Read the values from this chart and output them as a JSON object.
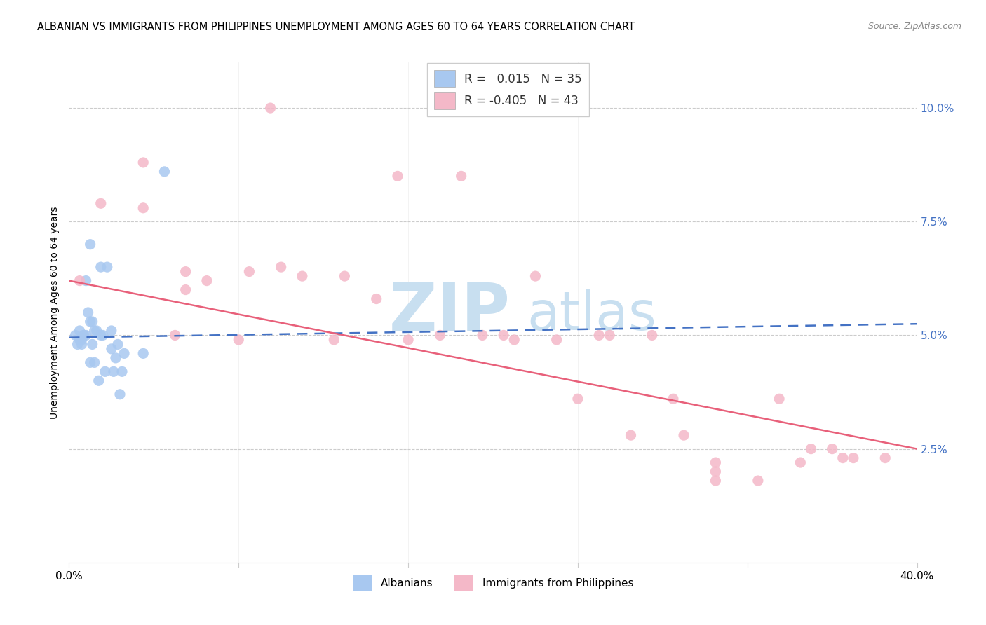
{
  "title": "ALBANIAN VS IMMIGRANTS FROM PHILIPPINES UNEMPLOYMENT AMONG AGES 60 TO 64 YEARS CORRELATION CHART",
  "source": "Source: ZipAtlas.com",
  "ylabel": "Unemployment Among Ages 60 to 64 years",
  "legend_albanian_r": "0.015",
  "legend_albanian_n": "35",
  "legend_phil_r": "-0.405",
  "legend_phil_n": "43",
  "albanian_color": "#a8c8f0",
  "phil_color": "#f4b8c8",
  "albanian_line_color": "#4472c4",
  "phil_line_color": "#e8607a",
  "watermark_zip": "ZIP",
  "watermark_atlas": "atlas",
  "watermark_color": "#c8dff0",
  "albanian_x": [
    0.3,
    0.4,
    0.5,
    0.5,
    0.6,
    0.6,
    0.7,
    0.7,
    0.8,
    0.8,
    0.9,
    1.0,
    1.0,
    1.0,
    1.1,
    1.1,
    1.2,
    1.2,
    1.3,
    1.4,
    1.5,
    1.5,
    1.6,
    1.7,
    1.8,
    2.0,
    2.0,
    2.1,
    2.2,
    2.3,
    2.4,
    2.5,
    2.6,
    3.5,
    4.5
  ],
  "albanian_y": [
    5.0,
    4.8,
    4.9,
    5.1,
    4.8,
    4.9,
    5.0,
    5.0,
    5.0,
    6.2,
    5.5,
    5.3,
    7.0,
    4.4,
    5.3,
    4.8,
    5.1,
    4.4,
    5.1,
    4.0,
    5.0,
    6.5,
    5.0,
    4.2,
    6.5,
    5.1,
    4.7,
    4.2,
    4.5,
    4.8,
    3.7,
    4.2,
    4.6,
    4.6,
    8.6
  ],
  "phil_x": [
    0.5,
    1.5,
    3.5,
    5.5,
    5.5,
    6.5,
    8.5,
    10.0,
    11.0,
    13.0,
    14.5,
    17.5,
    19.5,
    20.5,
    22.0,
    25.0,
    25.5,
    27.5,
    29.0,
    30.5,
    30.5,
    30.5,
    32.5,
    34.5,
    35.0,
    36.0,
    36.5,
    37.0,
    38.5,
    3.5,
    5.0,
    8.0,
    12.5,
    16.0,
    21.0,
    23.0,
    28.5,
    26.5,
    24.0,
    9.5,
    15.5,
    18.5,
    33.5
  ],
  "phil_y": [
    6.2,
    7.9,
    7.8,
    6.4,
    6.0,
    6.2,
    6.4,
    6.5,
    6.3,
    6.3,
    5.8,
    5.0,
    5.0,
    5.0,
    6.3,
    5.0,
    5.0,
    5.0,
    2.8,
    1.8,
    2.2,
    2.0,
    1.8,
    2.2,
    2.5,
    2.5,
    2.3,
    2.3,
    2.3,
    8.8,
    5.0,
    4.9,
    4.9,
    4.9,
    4.9,
    4.9,
    3.6,
    2.8,
    3.6,
    10.0,
    8.5,
    8.5,
    3.6
  ],
  "alb_line_x": [
    0.0,
    40.0
  ],
  "alb_line_y": [
    4.95,
    5.25
  ],
  "phil_line_x": [
    0.0,
    40.0
  ],
  "phil_line_y": [
    6.2,
    2.5
  ],
  "xlim": [
    0,
    40
  ],
  "ylim": [
    0,
    11.0
  ],
  "yticks": [
    2.5,
    5.0,
    7.5,
    10.0
  ],
  "ytick_labels": [
    "2.5%",
    "5.0%",
    "7.5%",
    "10.0%"
  ],
  "xtick_labels": [
    "0.0%",
    "40.0%"
  ],
  "yaxis_color": "#4472c4",
  "title_fontsize": 10.5,
  "axis_label_fontsize": 10,
  "tick_fontsize": 11
}
